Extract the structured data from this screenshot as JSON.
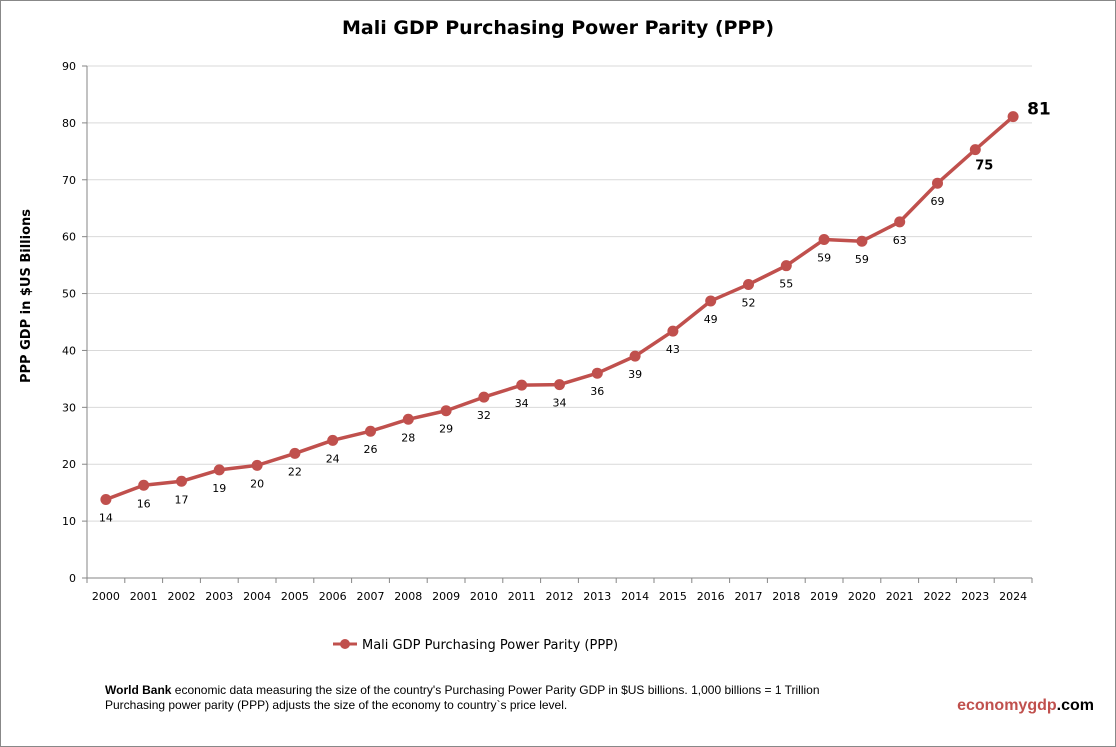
{
  "chart_data": {
    "type": "line",
    "title": "Mali GDP Purchasing Power Parity (PPP)",
    "xlabel": "",
    "ylabel": "PPP GDP in $US Billions",
    "ylim": [
      0,
      90
    ],
    "yticks": [
      0,
      10,
      20,
      30,
      40,
      50,
      60,
      70,
      80,
      90
    ],
    "grid": true,
    "legend_placement": "bottom",
    "categories": [
      "2000",
      "2001",
      "2002",
      "2003",
      "2004",
      "2005",
      "2006",
      "2007",
      "2008",
      "2009",
      "2010",
      "2011",
      "2012",
      "2013",
      "2014",
      "2015",
      "2016",
      "2017",
      "2018",
      "2019",
      "2020",
      "2021",
      "2022",
      "2023",
      "2024"
    ],
    "series": [
      {
        "name": "Mali GDP Purchasing Power Parity (PPP)",
        "color": "#c0504d",
        "values": [
          13.8,
          16.3,
          17.0,
          19.0,
          19.8,
          21.9,
          24.2,
          25.8,
          27.9,
          29.4,
          31.8,
          33.9,
          34.0,
          36.0,
          39.0,
          43.4,
          48.7,
          51.6,
          54.9,
          59.5,
          59.2,
          62.6,
          69.4,
          75.3,
          81.1
        ],
        "labels": [
          "14",
          "16",
          "17",
          "19",
          "20",
          "22",
          "24",
          "26",
          "28",
          "29",
          "32",
          "34",
          "34",
          "36",
          "39",
          "43",
          "49",
          "52",
          "55",
          "59",
          "59",
          "63",
          "69",
          "75",
          "81"
        ]
      }
    ]
  },
  "footer": {
    "line1_bold": "World Bank",
    "line1_rest": " economic data  measuring the size of the country's Purchasing Power Parity GDP in $US billions. 1,000 billions = 1 Trillion",
    "line2": "Purchasing power parity (PPP) adjusts the size of the economy to country`s price level.",
    "brand_part1": "economy",
    "brand_part2": "gdp",
    "brand_part3": ".com",
    "brand_colors": [
      "#c0504d",
      "#c0504d",
      "#000000"
    ]
  }
}
